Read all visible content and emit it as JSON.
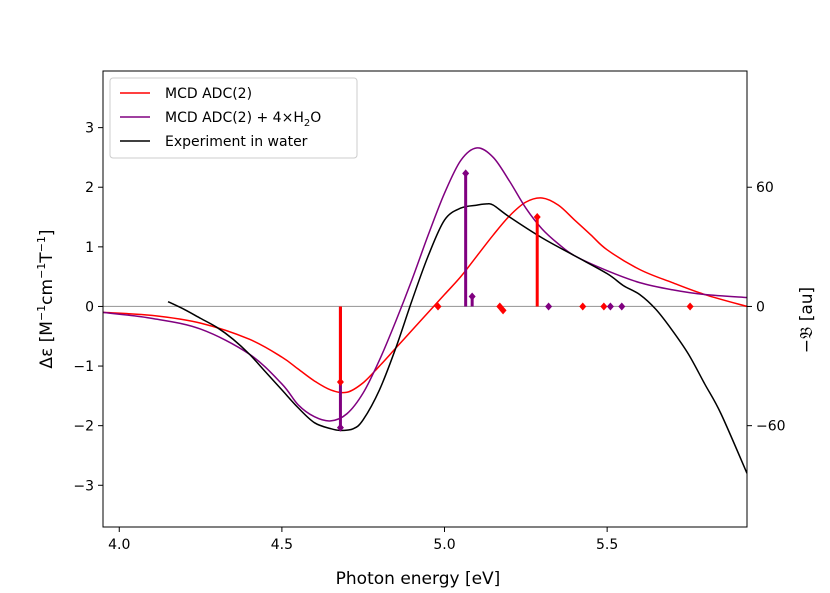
{
  "chart_data": {
    "type": "line",
    "xlabel": "Photon energy [eV]",
    "ylabel_prefix": "Δε [M",
    "ylabel_sup1": "−1",
    "ylabel_mid1": "cm",
    "ylabel_sup2": "−1",
    "ylabel_mid2": "T",
    "ylabel_sup3": "−1",
    "ylabel_suffix": "]",
    "y2label": "−𝔅 [au]",
    "xlim": [
      3.95,
      5.93
    ],
    "ylim": [
      -3.7,
      3.95
    ],
    "y2_scale_per_unit": 30,
    "xticks": [
      4.0,
      4.5,
      5.0,
      5.5
    ],
    "xtick_labels": [
      "4.0",
      "4.5",
      "5.0",
      "5.5"
    ],
    "yticks": [
      -3,
      -2,
      -1,
      0,
      1,
      2,
      3
    ],
    "ytick_labels": [
      "−3",
      "−2",
      "−1",
      "0",
      "1",
      "2",
      "3"
    ],
    "y2ticks": [
      -60,
      0,
      60
    ],
    "y2tick_labels": [
      "−60",
      "0",
      "60"
    ],
    "zero_line": true,
    "legend_position": "upper-left",
    "legend": [
      {
        "label": "MCD ADC(2)",
        "color": "#ff0000"
      },
      {
        "label_main": "MCD ADC(2) + 4×H",
        "label_sub": "2",
        "label_tail": "O",
        "color": "#800080"
      },
      {
        "label": "Experiment in water",
        "color": "#000000"
      }
    ],
    "series": [
      {
        "name": "MCD ADC(2)",
        "color": "#ff0000",
        "x": [
          3.95,
          4.1,
          4.25,
          4.4,
          4.5,
          4.55,
          4.6,
          4.65,
          4.7,
          4.75,
          4.8,
          4.85,
          4.9,
          4.95,
          5.0,
          5.05,
          5.1,
          5.15,
          5.2,
          5.25,
          5.3,
          5.35,
          5.4,
          5.45,
          5.5,
          5.6,
          5.7,
          5.8,
          5.93
        ],
        "y": [
          -0.1,
          -0.15,
          -0.28,
          -0.55,
          -0.85,
          -1.05,
          -1.25,
          -1.4,
          -1.44,
          -1.28,
          -1.0,
          -0.7,
          -0.4,
          -0.1,
          0.2,
          0.5,
          0.85,
          1.2,
          1.52,
          1.75,
          1.82,
          1.7,
          1.45,
          1.2,
          0.95,
          0.62,
          0.4,
          0.2,
          0.0
        ]
      },
      {
        "name": "MCD ADC(2) + 4×H2O",
        "color": "#800080",
        "x": [
          3.95,
          4.1,
          4.25,
          4.4,
          4.5,
          4.55,
          4.6,
          4.65,
          4.7,
          4.75,
          4.8,
          4.85,
          4.9,
          4.95,
          5.0,
          5.05,
          5.1,
          5.15,
          5.2,
          5.25,
          5.3,
          5.35,
          5.4,
          5.5,
          5.6,
          5.7,
          5.8,
          5.93
        ],
        "y": [
          -0.1,
          -0.2,
          -0.38,
          -0.8,
          -1.3,
          -1.65,
          -1.85,
          -1.92,
          -1.8,
          -1.45,
          -0.9,
          -0.25,
          0.45,
          1.2,
          1.9,
          2.45,
          2.66,
          2.5,
          2.1,
          1.65,
          1.3,
          1.05,
          0.85,
          0.6,
          0.4,
          0.28,
          0.2,
          0.15
        ]
      },
      {
        "name": "Experiment in water",
        "color": "#000000",
        "x": [
          4.15,
          4.2,
          4.25,
          4.3,
          4.35,
          4.4,
          4.45,
          4.5,
          4.55,
          4.6,
          4.65,
          4.68,
          4.72,
          4.75,
          4.8,
          4.85,
          4.9,
          4.95,
          5.0,
          5.05,
          5.1,
          5.13,
          5.15,
          5.2,
          5.3,
          5.4,
          5.5,
          5.55,
          5.6,
          5.65,
          5.7,
          5.75,
          5.8,
          5.85,
          5.93
        ],
        "y": [
          0.08,
          -0.05,
          -0.2,
          -0.35,
          -0.55,
          -0.8,
          -1.1,
          -1.4,
          -1.7,
          -1.95,
          -2.05,
          -2.08,
          -2.05,
          -1.9,
          -1.4,
          -0.7,
          0.1,
          0.85,
          1.45,
          1.65,
          1.7,
          1.72,
          1.7,
          1.5,
          1.15,
          0.85,
          0.55,
          0.35,
          0.2,
          -0.05,
          -0.4,
          -0.8,
          -1.3,
          -1.8,
          -2.8
        ]
      }
    ],
    "sticks": [
      {
        "series": "MCD ADC(2) + 4×H2O",
        "color": "#800080",
        "x": [
          4.68,
          5.065,
          5.085,
          5.32,
          5.51,
          5.545
        ],
        "y2": [
          -61,
          67,
          5,
          0,
          0,
          0
        ]
      },
      {
        "series": "MCD ADC(2)",
        "color": "#ff0000",
        "x": [
          4.68,
          4.98,
          5.17,
          5.18,
          5.285,
          5.425,
          5.49,
          5.755
        ],
        "y2": [
          -38,
          0,
          0,
          -2,
          45,
          0,
          0,
          0
        ]
      }
    ]
  }
}
